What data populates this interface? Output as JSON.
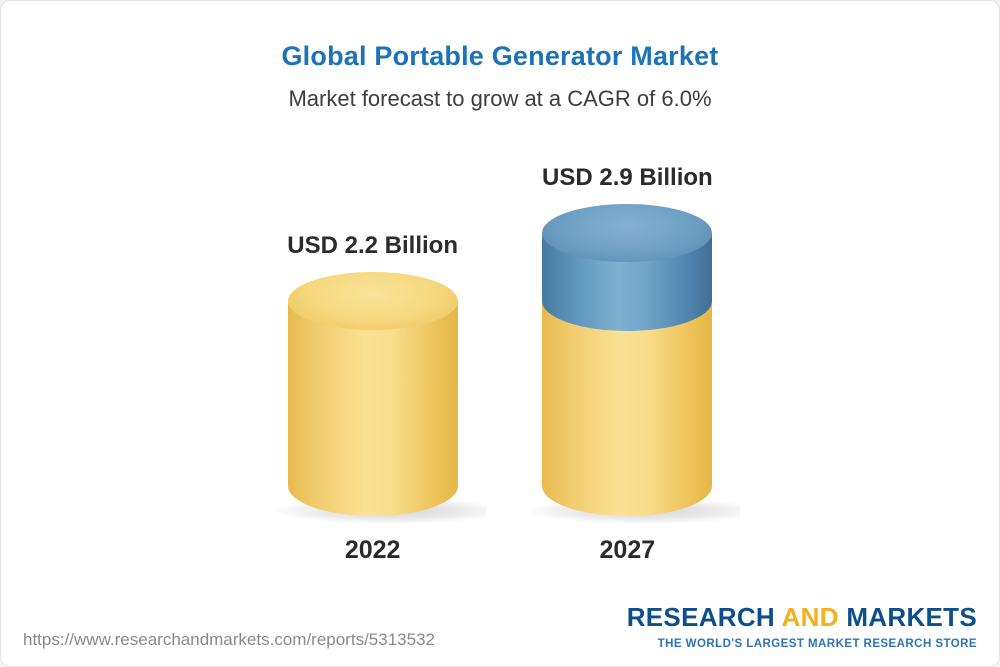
{
  "header": {
    "title": "Global Portable Generator Market",
    "subtitle": "Market forecast to grow at a CAGR of 6.0%"
  },
  "chart_data": {
    "type": "bar",
    "variant": "3d-cylinder",
    "title": "Global Portable Generator Market",
    "subtitle": "Market forecast to grow at a CAGR of 6.0%",
    "cagr_percent": 6.0,
    "unit": "USD Billion",
    "categories": [
      "2022",
      "2027"
    ],
    "values": [
      2.2,
      2.9
    ],
    "value_labels": [
      "USD 2.2 Billion",
      "USD 2.9 Billion"
    ],
    "growth_note": "2027 cylinder shows base value in yellow and growth over 2022 in blue",
    "colors": {
      "base_bar": "#f5ce63",
      "growth_segment": "#6d9fc4",
      "title_text": "#1e73b4"
    },
    "legend_position": "none",
    "grid": false
  },
  "footer": {
    "url": "https://www.researchandmarkets.com/reports/5313532",
    "logo": {
      "research": "RESEARCH",
      "and": "AND",
      "markets": "MARKETS",
      "tagline": "THE WORLD'S LARGEST MARKET RESEARCH STORE"
    }
  }
}
